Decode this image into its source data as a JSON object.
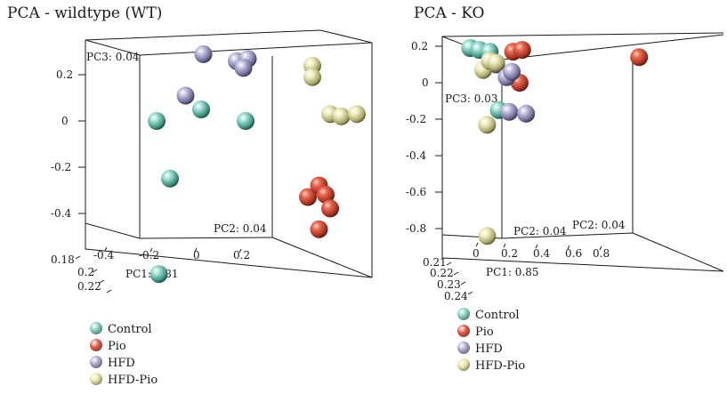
{
  "chart_data": [
    {
      "type": "scatter",
      "title": "PCA - wildtype (WT)",
      "axes": {
        "pc1": {
          "label": "PC1: 0.81",
          "ticks": [
            "0.18",
            "0.2",
            "0.22"
          ]
        },
        "pc2": {
          "label": "PC2: 0.04",
          "ticks": [
            "-0.4",
            "-0.2",
            "0",
            "0.2"
          ]
        },
        "pc3": {
          "label": "PC3: 0.04",
          "ticks": [
            "0.2",
            "0",
            "-0.2",
            "-0.4"
          ]
        }
      },
      "series": [
        {
          "name": "Control",
          "points": [
            [
              0.19,
              -0.41,
              -0.51
            ],
            [
              0.21,
              -0.18,
              0.0
            ],
            [
              0.21,
              -0.12,
              -0.25
            ],
            [
              0.21,
              0.02,
              0.05
            ],
            [
              0.21,
              0.22,
              0.0
            ]
          ]
        },
        {
          "name": "Pio",
          "points": [
            [
              0.21,
              0.5,
              -0.33
            ],
            [
              0.21,
              0.55,
              -0.28
            ],
            [
              0.21,
              0.58,
              -0.32
            ],
            [
              0.21,
              0.6,
              -0.38
            ],
            [
              0.21,
              0.55,
              -0.47
            ]
          ]
        },
        {
          "name": "HFD",
          "points": [
            [
              0.21,
              -0.05,
              0.11
            ],
            [
              0.21,
              0.03,
              0.29
            ],
            [
              0.21,
              0.18,
              0.26
            ],
            [
              0.21,
              0.23,
              0.27
            ],
            [
              0.21,
              0.21,
              0.23
            ]
          ]
        },
        {
          "name": "HFD-Pio",
          "points": [
            [
              0.21,
              0.52,
              0.24
            ],
            [
              0.21,
              0.52,
              0.19
            ],
            [
              0.21,
              0.6,
              0.03
            ],
            [
              0.21,
              0.65,
              0.02
            ],
            [
              0.21,
              0.72,
              0.03
            ]
          ]
        }
      ]
    },
    {
      "type": "scatter",
      "title": "PCA - KO",
      "axes": {
        "pc1": {
          "label": "PC1: 0.85",
          "ticks": [
            "0.21",
            "0.22",
            "0.23",
            "0.24"
          ]
        },
        "pc2": {
          "label": "PC2: 0.04",
          "ticks": [
            "0",
            "0.2",
            "0.4",
            "0.6",
            "0.8"
          ]
        },
        "pc3": {
          "label": "PC3: 0.03",
          "ticks": [
            "0.2",
            "0",
            "-0.2",
            "-0.4",
            "-0.6",
            "-0.8"
          ]
        }
      },
      "extra_labels": [
        "PC2: 0.04"
      ],
      "series": [
        {
          "name": "Control",
          "points": [
            [
              0.22,
              -0.1,
              0.19
            ],
            [
              0.22,
              -0.03,
              0.18
            ],
            [
              0.22,
              0.05,
              0.17
            ],
            [
              0.22,
              0.12,
              -0.15
            ]
          ]
        },
        {
          "name": "Pio",
          "points": [
            [
              0.22,
              0.23,
              0.17
            ],
            [
              0.22,
              0.3,
              0.18
            ],
            [
              0.22,
              0.28,
              0.0
            ],
            [
              0.22,
              1.2,
              0.14
            ]
          ]
        },
        {
          "name": "HFD",
          "points": [
            [
              0.22,
              0.1,
              0.1
            ],
            [
              0.22,
              0.18,
              0.03
            ],
            [
              0.22,
              0.22,
              0.06
            ],
            [
              0.22,
              0.2,
              -0.16
            ],
            [
              0.22,
              0.33,
              -0.17
            ]
          ]
        },
        {
          "name": "HFD-Pio",
          "points": [
            [
              0.22,
              0.0,
              0.07
            ],
            [
              0.22,
              0.05,
              0.12
            ],
            [
              0.22,
              0.1,
              0.11
            ],
            [
              0.22,
              0.03,
              -0.23
            ],
            [
              0.22,
              0.03,
              -0.84
            ]
          ]
        }
      ]
    }
  ],
  "colors": {
    "Control": "#7ecfc0",
    "Pio": "#e0563f",
    "HFD": "#a9a7cc",
    "HFD-Pio": "#e7e4a6"
  },
  "legend": [
    "Control",
    "Pio",
    "HFD",
    "HFD-Pio"
  ]
}
